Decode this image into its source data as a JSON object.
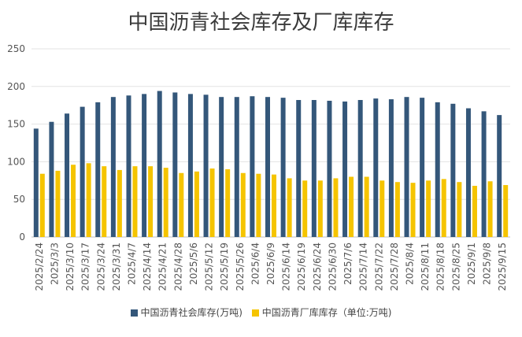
{
  "chart_data": {
    "type": "bar",
    "title": "中国沥青社会库存及厂库库存",
    "ylim": [
      0,
      250
    ],
    "yticks": [
      0,
      50,
      100,
      150,
      200,
      250
    ],
    "grid": true,
    "legend_position": "bottom",
    "categories": [
      "2025/2/24",
      "2025/3/3",
      "2025/3/10",
      "2025/3/17",
      "2025/3/24",
      "2025/3/31",
      "2025/4/7",
      "2025/4/14",
      "2025/4/21",
      "2025/4/28",
      "2025/5/6",
      "2025/5/12",
      "2025/5/19",
      "2025/5/26",
      "2025/6/4",
      "2025/6/9",
      "2025/6/14",
      "2025/6/19",
      "2025/6/24",
      "2025/6/30",
      "2025/7/6",
      "2025/7/14",
      "2025/7/22",
      "2025/7/28",
      "2025/8/4",
      "2025/8/11",
      "2025/8/18",
      "2025/8/25",
      "2025/9/1",
      "2025/9/8",
      "2025/9/15"
    ],
    "series": [
      {
        "name": "中国沥青社会库存(万吨)",
        "color": "#34577a",
        "values": [
          144,
          153,
          164,
          173,
          179,
          186,
          188,
          190,
          194,
          192,
          190,
          189,
          186,
          186,
          187,
          186,
          185,
          182,
          182,
          181,
          180,
          182,
          184,
          183,
          186,
          185,
          179,
          177,
          171,
          167,
          162
        ]
      },
      {
        "name": "中国沥青厂库库存（单位:万吨)",
        "color": "#f5c400",
        "values": [
          84,
          88,
          96,
          98,
          94,
          89,
          94,
          94,
          92,
          85,
          87,
          91,
          90,
          85,
          84,
          83,
          78,
          75,
          75,
          78,
          80,
          80,
          75,
          73,
          72,
          75,
          77,
          73,
          68,
          74,
          69
        ]
      }
    ]
  }
}
